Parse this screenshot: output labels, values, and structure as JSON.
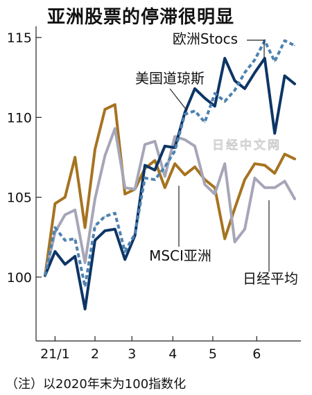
{
  "chart_data": {
    "type": "line",
    "title": "亚洲股票的停滞很明显",
    "note": "（注）以2020年末为100指数化",
    "watermark": "日经中文网",
    "ylim": [
      96,
      115.7
    ],
    "yticks": [
      100,
      105,
      110,
      115
    ],
    "xlim": [
      0,
      26
    ],
    "xticks": [
      {
        "label": "21/1",
        "x": 1
      },
      {
        "label": "2",
        "x": 5
      },
      {
        "label": "3",
        "x": 8.7
      },
      {
        "label": "4",
        "x": 12.8
      },
      {
        "label": "5",
        "x": 16.8
      },
      {
        "label": "6",
        "x": 21.2
      }
    ],
    "series": [
      {
        "name": "日经平均",
        "color": "#a67320",
        "dash": "",
        "values": [
          100.1,
          104.6,
          105.0,
          107.5,
          103.1,
          108.0,
          110.5,
          110.8,
          105.2,
          105.5,
          106.8,
          107.3,
          105.6,
          107.1,
          106.4,
          106.9,
          106.1,
          105.6,
          102.4,
          104.3,
          106.1,
          107.1,
          107.0,
          106.5,
          107.7,
          107.4
        ]
      },
      {
        "name": "MSCI亚洲",
        "color": "#a6a6b8",
        "dash": "",
        "values": [
          100.1,
          102.8,
          103.9,
          104.2,
          100.9,
          104.9,
          107.6,
          109.3,
          105.6,
          105.5,
          108.3,
          108.5,
          106.3,
          108.8,
          108.6,
          108.2,
          105.8,
          105.2,
          107.1,
          102.2,
          103.0,
          106.2,
          105.6,
          105.6,
          106.0,
          104.9
        ]
      },
      {
        "name": "美国道琼斯",
        "color": "#0d3566",
        "dash": "",
        "values": [
          100.1,
          101.6,
          100.8,
          101.3,
          98.0,
          102.3,
          102.9,
          103.0,
          101.1,
          102.6,
          107.0,
          106.7,
          108.2,
          108.1,
          110.3,
          111.8,
          111.2,
          110.7,
          113.7,
          112.3,
          111.8,
          112.8,
          113.7,
          109.0,
          112.6,
          112.1
        ]
      },
      {
        "name": "欧洲Stocs",
        "color": "#4d82b0",
        "dash": "6,4",
        "values": [
          100.1,
          103.1,
          102.3,
          102.4,
          99.4,
          103.2,
          103.8,
          104.0,
          101.6,
          102.7,
          106.2,
          106.1,
          106.9,
          107.9,
          110.2,
          110.4,
          109.7,
          111.5,
          111.0,
          111.7,
          112.8,
          113.6,
          114.8,
          113.5,
          114.8,
          114.5
        ]
      }
    ]
  }
}
